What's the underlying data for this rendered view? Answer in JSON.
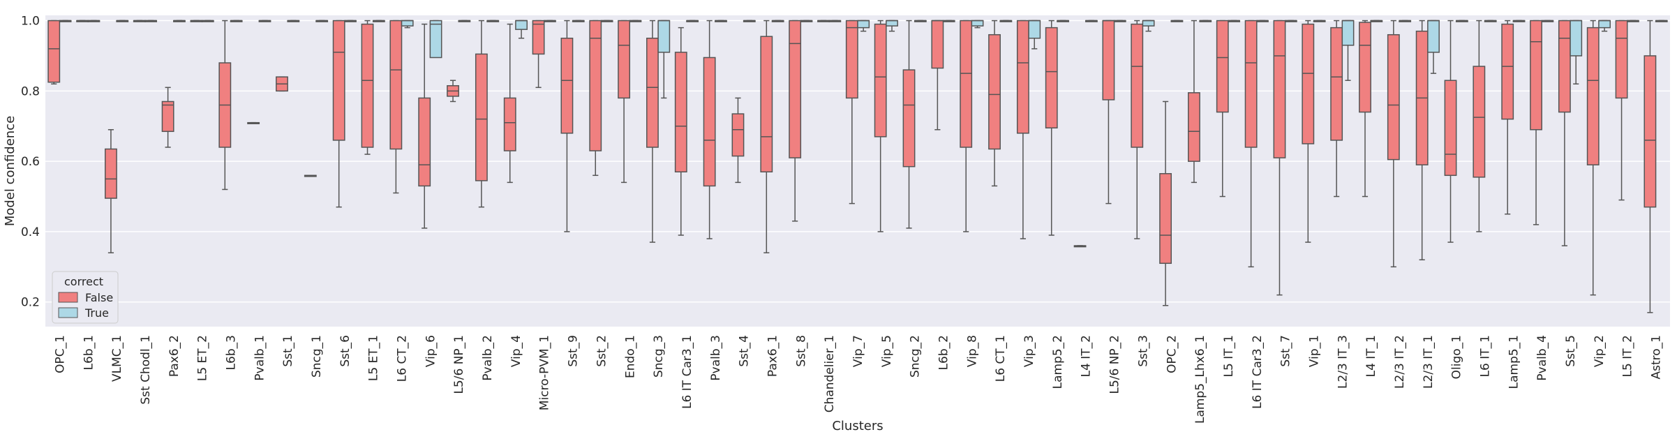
{
  "chart_data": {
    "type": "box",
    "xlabel": "Clusters",
    "ylabel": "Model confidence",
    "ylim": [
      0.13,
      1.015
    ],
    "yticks": [
      0.2,
      0.4,
      0.6,
      0.8,
      1.0
    ],
    "ytick_labels": [
      "0.2",
      "0.4",
      "0.6",
      "0.8",
      "1.0"
    ],
    "grid": true,
    "legend": {
      "title": "correct",
      "location": "lower-left",
      "entries": [
        {
          "label": "False",
          "color": "#f08080"
        },
        {
          "label": "True",
          "color": "#add8e6"
        }
      ]
    },
    "colors": {
      "False": "#f08080",
      "True": "#add8e6",
      "background": "#eaeaf2",
      "line": "#555555"
    },
    "categories": [
      "OPC_1",
      "L6b_1",
      "VLMC_1",
      "Sst Chodl_1",
      "Pax6_2",
      "L5 ET_2",
      "L6b_3",
      "Pvalb_1",
      "Sst_1",
      "Sncg_1",
      "Sst_6",
      "L5 ET_1",
      "L6 CT_2",
      "Vip_6",
      "L5/6 NP_1",
      "Pvalb_2",
      "Vip_4",
      "Micro-PVM_1",
      "Sst_9",
      "Sst_2",
      "Endo_1",
      "Sncg_3",
      "L6 IT Car3_1",
      "Pvalb_3",
      "Sst_4",
      "Pax6_1",
      "Sst_8",
      "Chandelier_1",
      "Vip_7",
      "Vip_5",
      "Sncg_2",
      "L6b_2",
      "Vip_8",
      "L6 CT_1",
      "Vip_3",
      "Lamp5_2",
      "L4 IT_2",
      "L5/6 NP_2",
      "Sst_3",
      "OPC_2",
      "Lamp5_Lhx6_1",
      "L5 IT_1",
      "L6 IT Car3_2",
      "Sst_7",
      "Vip_1",
      "L2/3 IT_3",
      "L4 IT_1",
      "L2/3 IT_2",
      "L2/3 IT_1",
      "Oligo_1",
      "L6 IT_1",
      "Lamp5_1",
      "Pvalb_4",
      "Sst_5",
      "Vip_2",
      "L5 IT_2",
      "Astro_1"
    ],
    "series": [
      {
        "name": "False",
        "boxes": [
          [
            0.82,
            0.825,
            0.92,
            1.0,
            1.0
          ],
          [
            1.0,
            1.0,
            1.0,
            1.0,
            1.0
          ],
          [
            0.34,
            0.495,
            0.55,
            0.635,
            0.69
          ],
          [
            1.0,
            1.0,
            1.0,
            1.0,
            1.0
          ],
          [
            0.64,
            0.685,
            0.76,
            0.77,
            0.81
          ],
          [
            1.0,
            1.0,
            1.0,
            1.0,
            1.0
          ],
          [
            0.52,
            0.64,
            0.76,
            0.88,
            1.0
          ],
          [
            0.71,
            0.71,
            0.71,
            0.71,
            0.71
          ],
          [
            0.8,
            0.8,
            0.82,
            0.84,
            0.84
          ],
          [
            0.56,
            0.56,
            0.56,
            0.56,
            0.56
          ],
          [
            0.47,
            0.66,
            0.91,
            1.0,
            1.0
          ],
          [
            0.62,
            0.64,
            0.83,
            0.99,
            1.0
          ],
          [
            0.51,
            0.635,
            0.86,
            1.0,
            1.0
          ],
          [
            0.41,
            0.53,
            0.59,
            0.78,
            0.99
          ],
          [
            0.77,
            0.785,
            0.8,
            0.815,
            0.83
          ],
          [
            0.47,
            0.545,
            0.72,
            0.905,
            1.0
          ],
          [
            0.54,
            0.63,
            0.71,
            0.78,
            0.99
          ],
          [
            0.81,
            0.905,
            0.99,
            1.0,
            1.0
          ],
          [
            0.4,
            0.68,
            0.83,
            0.95,
            1.0
          ],
          [
            0.56,
            0.63,
            0.95,
            1.0,
            1.0
          ],
          [
            0.54,
            0.78,
            0.93,
            1.0,
            1.0
          ],
          [
            0.37,
            0.64,
            0.81,
            0.95,
            1.0
          ],
          [
            0.39,
            0.57,
            0.7,
            0.91,
            0.98
          ],
          [
            0.38,
            0.53,
            0.66,
            0.895,
            1.0
          ],
          [
            0.54,
            0.615,
            0.69,
            0.735,
            0.78
          ],
          [
            0.34,
            0.57,
            0.67,
            0.955,
            1.0
          ],
          [
            0.43,
            0.61,
            0.935,
            1.0,
            1.0
          ],
          [
            1.0,
            1.0,
            1.0,
            1.0,
            1.0
          ],
          [
            0.48,
            0.78,
            0.98,
            1.0,
            1.0
          ],
          [
            0.4,
            0.67,
            0.84,
            0.99,
            1.0
          ],
          [
            0.41,
            0.585,
            0.76,
            0.86,
            1.0
          ],
          [
            0.69,
            0.865,
            1.0,
            1.0,
            1.0
          ],
          [
            0.4,
            0.64,
            0.85,
            1.0,
            1.0
          ],
          [
            0.53,
            0.635,
            0.79,
            0.96,
            1.0
          ],
          [
            0.38,
            0.68,
            0.88,
            1.0,
            1.0
          ],
          [
            0.39,
            0.695,
            0.855,
            0.98,
            1.0
          ],
          [
            0.36,
            0.36,
            0.36,
            0.36,
            0.36
          ],
          [
            0.48,
            0.775,
            1.0,
            1.0,
            1.0
          ],
          [
            0.38,
            0.64,
            0.87,
            0.99,
            1.0
          ],
          [
            0.19,
            0.31,
            0.39,
            0.565,
            0.77
          ],
          [
            0.54,
            0.6,
            0.685,
            0.795,
            1.0
          ],
          [
            0.5,
            0.74,
            0.895,
            1.0,
            1.0
          ],
          [
            0.3,
            0.64,
            0.88,
            1.0,
            1.0
          ],
          [
            0.22,
            0.61,
            0.9,
            1.0,
            1.0
          ],
          [
            0.37,
            0.65,
            0.85,
            0.99,
            1.0
          ],
          [
            0.5,
            0.66,
            0.84,
            0.98,
            1.0
          ],
          [
            0.5,
            0.74,
            0.93,
            0.995,
            1.0
          ],
          [
            0.3,
            0.605,
            0.76,
            0.96,
            1.0
          ],
          [
            0.32,
            0.59,
            0.78,
            0.97,
            1.0
          ],
          [
            0.37,
            0.56,
            0.62,
            0.83,
            1.0
          ],
          [
            0.4,
            0.555,
            0.725,
            0.87,
            1.0
          ],
          [
            0.45,
            0.72,
            0.87,
            0.99,
            1.0
          ],
          [
            0.42,
            0.69,
            0.94,
            1.0,
            1.0
          ],
          [
            0.36,
            0.74,
            0.95,
            1.0,
            1.0
          ],
          [
            0.22,
            0.59,
            0.83,
            0.98,
            1.0
          ],
          [
            0.49,
            0.78,
            0.95,
            1.0,
            1.0
          ],
          [
            0.17,
            0.47,
            0.66,
            0.9,
            1.0
          ]
        ]
      },
      {
        "name": "True",
        "boxes": [
          [
            1.0,
            1.0,
            1.0,
            1.0,
            1.0
          ],
          [
            1.0,
            1.0,
            1.0,
            1.0,
            1.0
          ],
          [
            1.0,
            1.0,
            1.0,
            1.0,
            1.0
          ],
          [
            1.0,
            1.0,
            1.0,
            1.0,
            1.0
          ],
          [
            1.0,
            1.0,
            1.0,
            1.0,
            1.0
          ],
          [
            1.0,
            1.0,
            1.0,
            1.0,
            1.0
          ],
          [
            1.0,
            1.0,
            1.0,
            1.0,
            1.0
          ],
          [
            1.0,
            1.0,
            1.0,
            1.0,
            1.0
          ],
          [
            1.0,
            1.0,
            1.0,
            1.0,
            1.0
          ],
          [
            1.0,
            1.0,
            1.0,
            1.0,
            1.0
          ],
          [
            1.0,
            1.0,
            1.0,
            1.0,
            1.0
          ],
          [
            1.0,
            1.0,
            1.0,
            1.0,
            1.0
          ],
          [
            0.98,
            0.985,
            1.0,
            1.0,
            1.0
          ],
          [
            0.9,
            0.895,
            0.99,
            1.0,
            1.0
          ],
          [
            1.0,
            1.0,
            1.0,
            1.0,
            1.0
          ],
          [
            1.0,
            1.0,
            1.0,
            1.0,
            1.0
          ],
          [
            0.95,
            0.975,
            1.0,
            1.0,
            1.0
          ],
          [
            1.0,
            1.0,
            1.0,
            1.0,
            1.0
          ],
          [
            1.0,
            1.0,
            1.0,
            1.0,
            1.0
          ],
          [
            1.0,
            1.0,
            1.0,
            1.0,
            1.0
          ],
          [
            1.0,
            1.0,
            1.0,
            1.0,
            1.0
          ],
          [
            0.78,
            0.91,
            1.0,
            1.0,
            1.0
          ],
          [
            1.0,
            1.0,
            1.0,
            1.0,
            1.0
          ],
          [
            1.0,
            1.0,
            1.0,
            1.0,
            1.0
          ],
          [
            1.0,
            1.0,
            1.0,
            1.0,
            1.0
          ],
          [
            1.0,
            1.0,
            1.0,
            1.0,
            1.0
          ],
          [
            1.0,
            1.0,
            1.0,
            1.0,
            1.0
          ],
          [
            1.0,
            1.0,
            1.0,
            1.0,
            1.0
          ],
          [
            0.97,
            0.98,
            1.0,
            1.0,
            1.0
          ],
          [
            0.97,
            0.985,
            1.0,
            1.0,
            1.0
          ],
          [
            1.0,
            1.0,
            1.0,
            1.0,
            1.0
          ],
          [
            1.0,
            1.0,
            1.0,
            1.0,
            1.0
          ],
          [
            0.98,
            0.985,
            1.0,
            1.0,
            1.0
          ],
          [
            1.0,
            1.0,
            1.0,
            1.0,
            1.0
          ],
          [
            0.92,
            0.95,
            1.0,
            1.0,
            1.0
          ],
          [
            1.0,
            1.0,
            1.0,
            1.0,
            1.0
          ],
          [
            1.0,
            1.0,
            1.0,
            1.0,
            1.0
          ],
          [
            1.0,
            1.0,
            1.0,
            1.0,
            1.0
          ],
          [
            0.97,
            0.985,
            1.0,
            1.0,
            1.0
          ],
          [
            1.0,
            1.0,
            1.0,
            1.0,
            1.0
          ],
          [
            1.0,
            1.0,
            1.0,
            1.0,
            1.0
          ],
          [
            1.0,
            1.0,
            1.0,
            1.0,
            1.0
          ],
          [
            1.0,
            1.0,
            1.0,
            1.0,
            1.0
          ],
          [
            1.0,
            1.0,
            1.0,
            1.0,
            1.0
          ],
          [
            1.0,
            1.0,
            1.0,
            1.0,
            1.0
          ],
          [
            0.83,
            0.93,
            1.0,
            1.0,
            1.0
          ],
          [
            1.0,
            1.0,
            1.0,
            1.0,
            1.0
          ],
          [
            1.0,
            1.0,
            1.0,
            1.0,
            1.0
          ],
          [
            0.85,
            0.91,
            1.0,
            1.0,
            1.0
          ],
          [
            1.0,
            1.0,
            1.0,
            1.0,
            1.0
          ],
          [
            1.0,
            1.0,
            1.0,
            1.0,
            1.0
          ],
          [
            1.0,
            1.0,
            1.0,
            1.0,
            1.0
          ],
          [
            1.0,
            1.0,
            1.0,
            1.0,
            1.0
          ],
          [
            0.82,
            0.9,
            1.0,
            1.0,
            1.0
          ],
          [
            0.97,
            0.98,
            1.0,
            1.0,
            1.0
          ],
          [
            1.0,
            1.0,
            1.0,
            1.0,
            1.0
          ],
          [
            1.0,
            1.0,
            1.0,
            1.0,
            1.0
          ]
        ]
      }
    ]
  }
}
